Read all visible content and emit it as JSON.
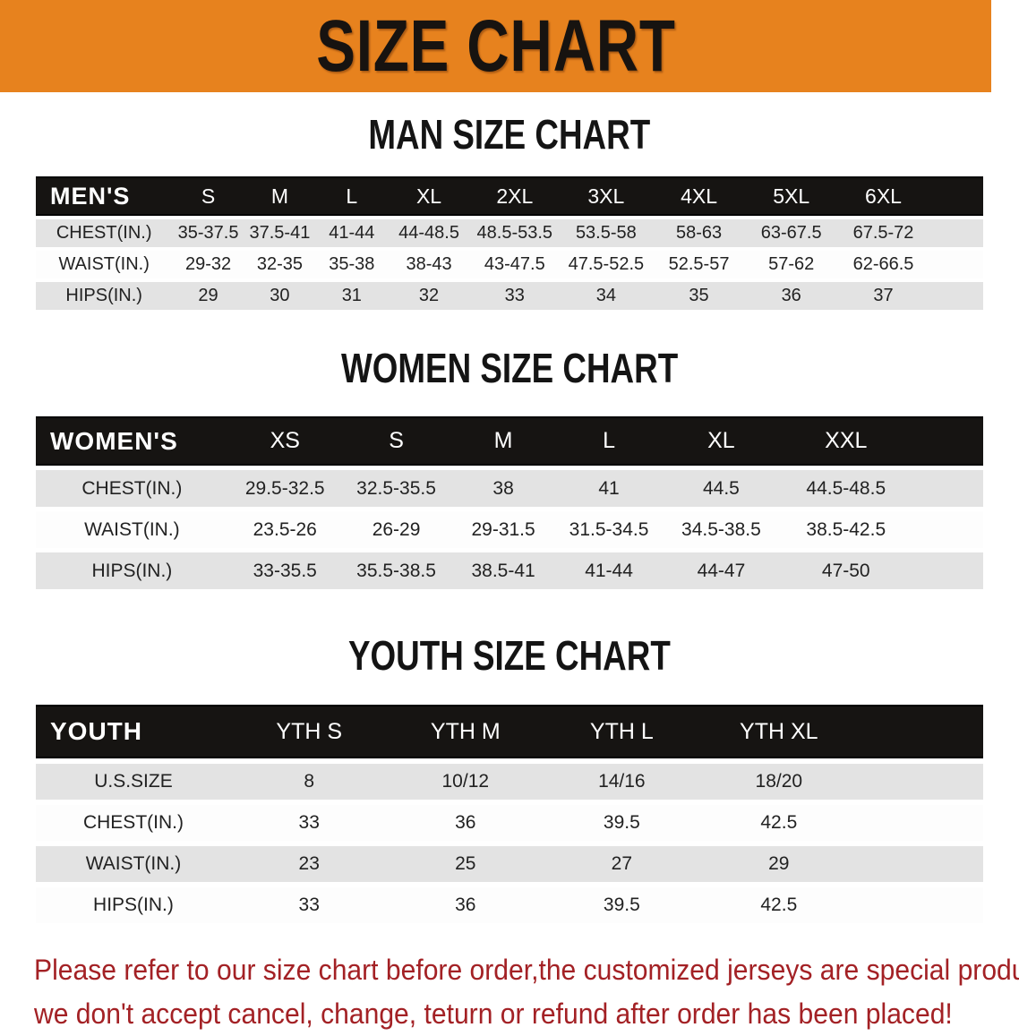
{
  "banner": {
    "title": "SIZE CHART"
  },
  "colors": {
    "banner_bg": "#E7821E",
    "banner_text": "#171310",
    "header_bar": "#161412",
    "row_gray": "#E3E3E3",
    "disclaimer_red": "#A32125"
  },
  "sections": [
    {
      "heading": "MAN SIZE CHART",
      "table": {
        "header": [
          "MEN'S",
          "S",
          "M",
          "L",
          "XL",
          "2XL",
          "3XL",
          "4XL",
          "5XL",
          "6XL"
        ],
        "rows": [
          [
            "CHEST(IN.)",
            "35-37.5",
            "37.5-41",
            "41-44",
            "44-48.5",
            "48.5-53.5",
            "53.5-58",
            "58-63",
            "63-67.5",
            "67.5-72"
          ],
          [
            "WAIST(IN.)",
            "29-32",
            "32-35",
            "35-38",
            "38-43",
            "43-47.5",
            "47.5-52.5",
            "52.5-57",
            "57-62",
            "62-66.5"
          ],
          [
            "HIPS(IN.)",
            "29",
            "30",
            "31",
            "32",
            "33",
            "34",
            "35",
            "36",
            "37"
          ]
        ]
      }
    },
    {
      "heading": "WOMEN SIZE CHART",
      "table": {
        "header": [
          "WOMEN'S",
          "XS",
          "S",
          "M",
          "L",
          "XL",
          "XXL"
        ],
        "rows": [
          [
            "CHEST(IN.)",
            "29.5-32.5",
            "32.5-35.5",
            "38",
            "41",
            "44.5",
            "44.5-48.5"
          ],
          [
            "WAIST(IN.)",
            "23.5-26",
            "26-29",
            "29-31.5",
            "31.5-34.5",
            "34.5-38.5",
            "38.5-42.5"
          ],
          [
            "HIPS(IN.)",
            "33-35.5",
            "35.5-38.5",
            "38.5-41",
            "41-44",
            "44-47",
            "47-50"
          ]
        ]
      }
    },
    {
      "heading": "YOUTH SIZE CHART",
      "table": {
        "header": [
          "YOUTH",
          "YTH S",
          "YTH M",
          "YTH L",
          "YTH XL"
        ],
        "rows": [
          [
            "U.S.SIZE",
            "8",
            "10/12",
            "14/16",
            "18/20"
          ],
          [
            "CHEST(IN.)",
            "33",
            "36",
            "39.5",
            "42.5"
          ],
          [
            "WAIST(IN.)",
            "23",
            "25",
            "27",
            "29"
          ],
          [
            "HIPS(IN.)",
            "33",
            "36",
            "39.5",
            "42.5"
          ]
        ]
      }
    }
  ],
  "disclaimer": {
    "line1": "Please refer to our size chart before order,the customized jerseys are special products,",
    "line2": "we don't accept cancel, change, teturn or refund after order has been placed!"
  }
}
